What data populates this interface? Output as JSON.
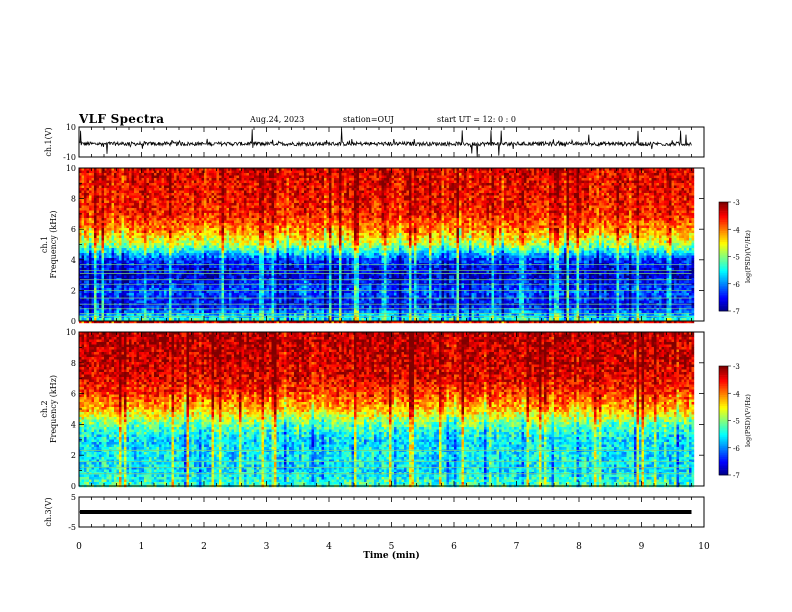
{
  "header": {
    "title": "VLF Spectra",
    "date": "Aug.24, 2023",
    "station": "station=OUJ",
    "start": "start  UT =   12: 0  : 0"
  },
  "chart_data": [
    {
      "type": "line",
      "name": "waveform-ch1",
      "ylabel": "ch.1(V)",
      "yticks": [
        "10",
        "-10"
      ],
      "ylim": [
        -10,
        10
      ],
      "xlim": [
        0,
        10
      ],
      "baseline": -1.2,
      "color": "#000000"
    },
    {
      "type": "heatmap",
      "name": "spectrogram-ch1",
      "ylabel": "ch.1\nFrequency (kHz)",
      "ylabel_lines": [
        "ch.1",
        "Frequency (kHz)"
      ],
      "yticks": [
        0,
        2,
        4,
        6,
        8,
        10
      ],
      "yticklabels": [
        "0",
        "2",
        "4",
        "6",
        "8",
        "10"
      ],
      "ylim": [
        0,
        10
      ],
      "xlim": [
        0,
        10
      ],
      "data_end_min": 9.8,
      "colorbar": {
        "label": "log(PSD)(V²/Hz)",
        "ticks": [
          -3,
          -4,
          -5,
          -6,
          -7
        ],
        "ticklabels": [
          "-3",
          "-4",
          "-5",
          "-6",
          "-7"
        ],
        "range": [
          -7,
          -3
        ]
      },
      "profile": [
        [
          0,
          -5.3
        ],
        [
          1,
          -6.5
        ],
        [
          2,
          -6.2
        ],
        [
          3,
          -6.7
        ],
        [
          4,
          -6.3
        ],
        [
          5,
          -4.8
        ],
        [
          6,
          -4.0
        ],
        [
          7,
          -3.6
        ],
        [
          8,
          -3.5
        ],
        [
          10,
          -3.4
        ]
      ],
      "tone_lines_khz": [
        0.3,
        0.5,
        0.8,
        1.1,
        1.5,
        2.0,
        2.4,
        2.7,
        3.1,
        3.3,
        3.7
      ]
    },
    {
      "type": "heatmap",
      "name": "spectrogram-ch2",
      "ylabel_lines": [
        "ch.2",
        "Frequency (kHz)"
      ],
      "yticks": [
        0,
        2,
        4,
        6,
        8,
        10
      ],
      "yticklabels": [
        "0",
        "2",
        "4",
        "6",
        "8",
        "10"
      ],
      "ylim": [
        0,
        10
      ],
      "xlim": [
        0,
        10
      ],
      "data_end_min": 9.8,
      "colorbar": {
        "label": "log(PSD)(V²/Hz)",
        "ticks": [
          -3,
          -4,
          -5,
          -6,
          -7
        ],
        "ticklabels": [
          "-3",
          "-4",
          "-5",
          "-6",
          "-7"
        ],
        "range": [
          -7,
          -3
        ]
      },
      "profile": [
        [
          0,
          -5.2
        ],
        [
          1,
          -5.6
        ],
        [
          2,
          -5.5
        ],
        [
          3,
          -5.6
        ],
        [
          4,
          -5.1
        ],
        [
          5,
          -4.2
        ],
        [
          6,
          -3.7
        ],
        [
          7,
          -3.4
        ],
        [
          8,
          -3.3
        ],
        [
          10,
          -3.2
        ]
      ],
      "tone_lines_khz": [
        0.8,
        1.2,
        1.6,
        2.3
      ]
    },
    {
      "type": "line",
      "name": "waveform-ch3",
      "ylabel": "ch.3(V)",
      "yticks": [
        "5",
        "-5"
      ],
      "ylim": [
        -5,
        5
      ],
      "xlim": [
        0,
        10
      ],
      "baseline": 0,
      "color": "#000000"
    }
  ],
  "xaxis": {
    "label": "Time  (min)",
    "ticks": [
      0,
      1,
      2,
      3,
      4,
      5,
      6,
      7,
      8,
      9,
      10
    ],
    "ticklabels": [
      "0",
      "1",
      "2",
      "3",
      "4",
      "5",
      "6",
      "7",
      "8",
      "9",
      "10"
    ]
  }
}
